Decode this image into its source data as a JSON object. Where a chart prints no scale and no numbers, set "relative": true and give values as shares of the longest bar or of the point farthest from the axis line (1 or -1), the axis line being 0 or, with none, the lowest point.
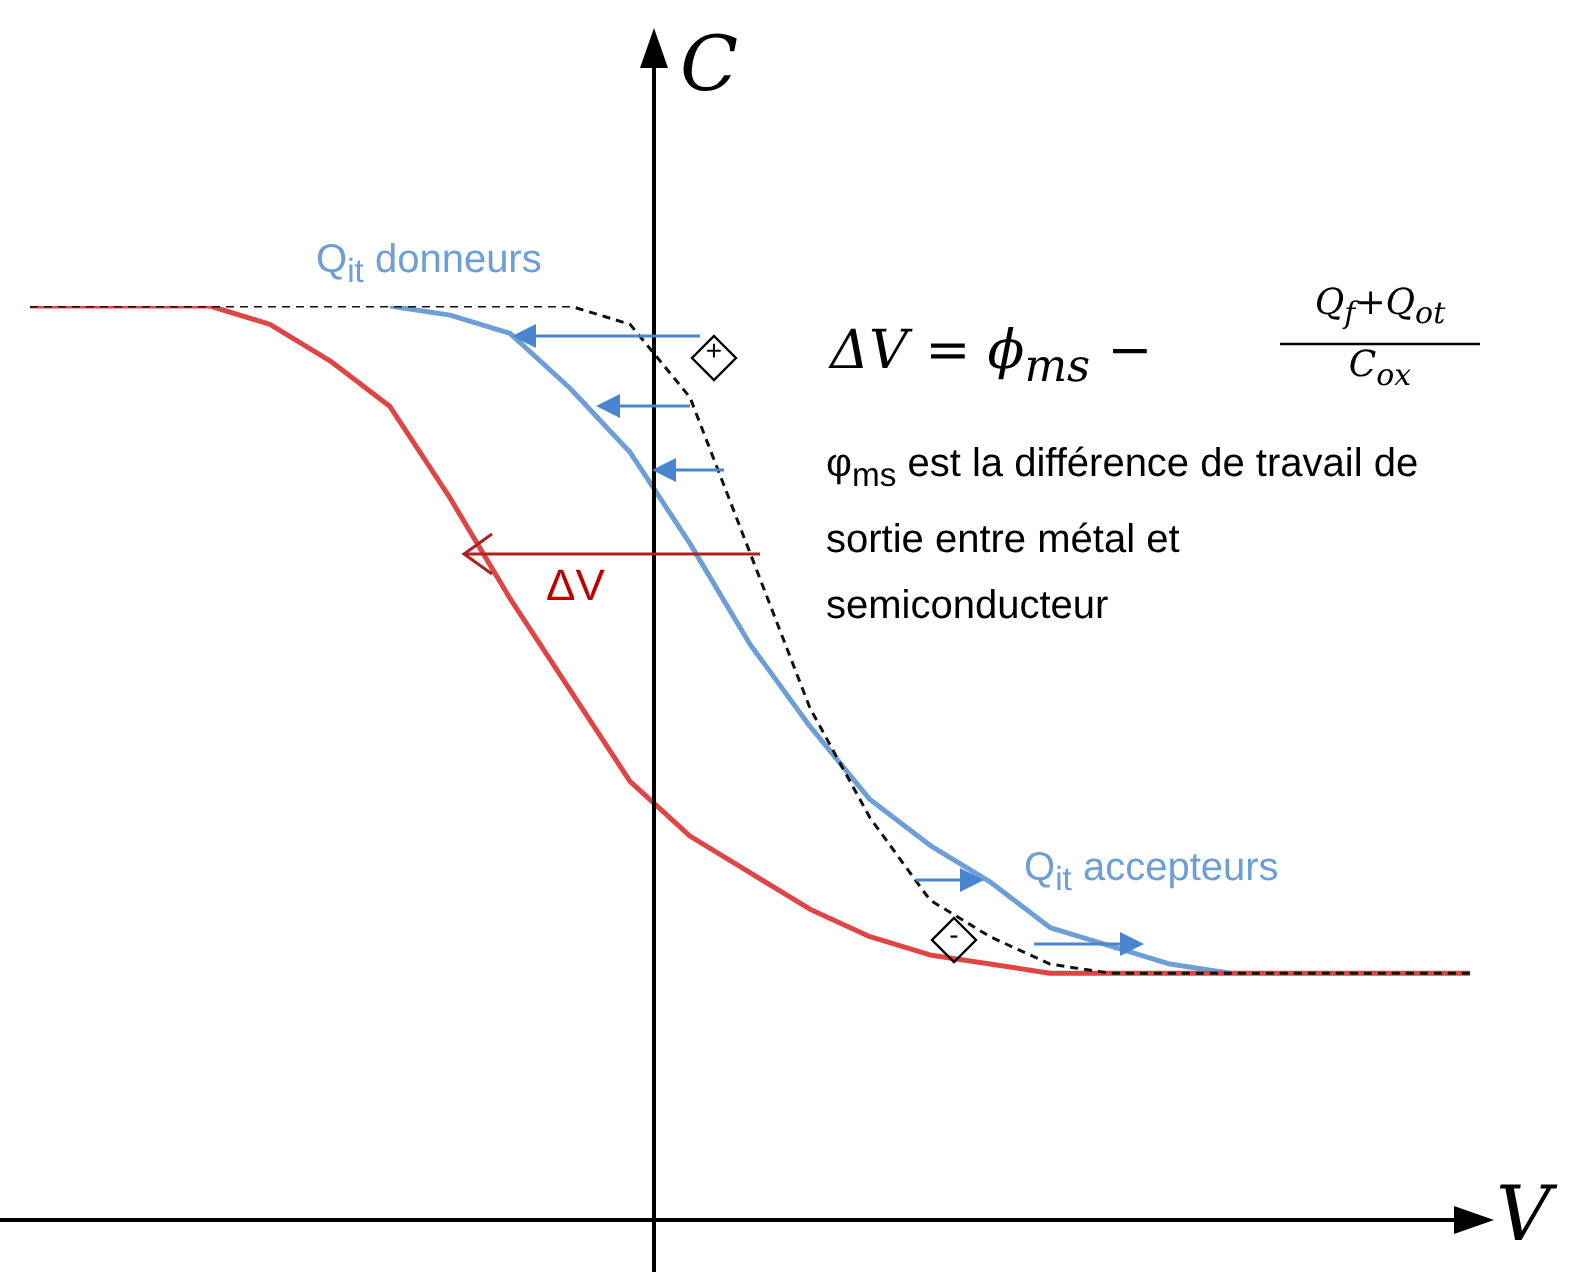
{
  "chart_data": {
    "type": "line",
    "relative": true,
    "xlabel": "V",
    "ylabel": "C",
    "categories": [
      null,
      null,
      null,
      null,
      null,
      null,
      null,
      null,
      null,
      null,
      null,
      null,
      null,
      null,
      null,
      null,
      null,
      null,
      null,
      null,
      null,
      null,
      null,
      null,
      null
    ],
    "series": [
      {
        "color": "#6d9fd6",
        "values": [
          null,
          null,
          null,
          null,
          null,
          null,
          1,
          0.99,
          0.97,
          0.91,
          0.84,
          0.74,
          0.63,
          0.54,
          0.46,
          0.41,
          0.37,
          0.32,
          0.3,
          0.28,
          0.27,
          null,
          null,
          null,
          null
        ]
      },
      {
        "color": "#e04545",
        "values": [
          1,
          1,
          1,
          1,
          0.98,
          0.94,
          0.89,
          0.79,
          0.68,
          0.58,
          0.48,
          0.42,
          0.38,
          0.34,
          0.31,
          0.29,
          0.28,
          0.27,
          0.27,
          0.27,
          0.27,
          0.27,
          0.27,
          0.27,
          0.27
        ]
      },
      {
        "color": "#111111",
        "line_style": "dashed",
        "values": [
          1,
          1,
          1,
          1,
          1,
          1,
          1,
          1,
          1,
          1,
          0.98,
          0.9,
          0.73,
          0.56,
          0.44,
          0.35,
          0.31,
          0.28,
          0.27,
          0.27,
          0.27,
          0.27,
          0.27,
          0.27,
          0.27
        ]
      }
    ],
    "annotations": [
      "Q$_{it}$ donneurs",
      "Q$_{it}$ accepteurs",
      "ΔV",
      "ΔV = ϕ$_{ms}$ −",
      "Q$_{f}$+Q$_{ot}$",
      "C$_{ox}$",
      "φ$_{ms}$ est la différence de travail de sortie entre métal et semiconducteur",
      "+",
      "-"
    ]
  }
}
